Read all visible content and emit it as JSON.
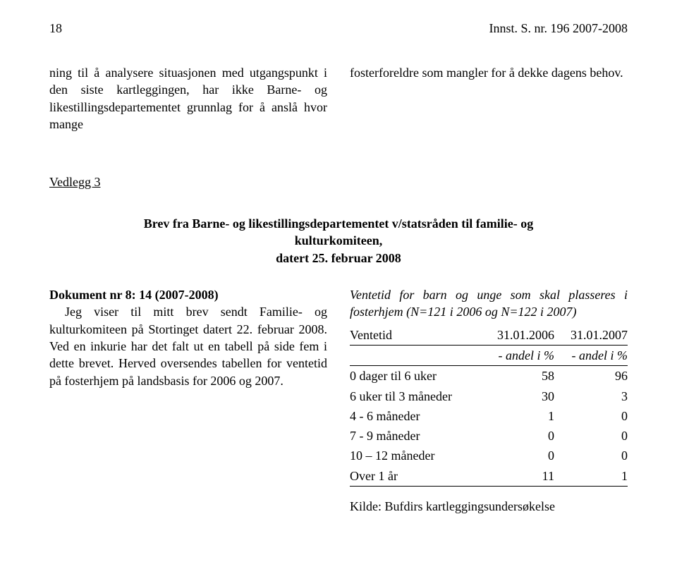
{
  "header": {
    "page_number": "18",
    "doc_ref": "Innst. S. nr. 196 2007-2008"
  },
  "top_left_text": "ning til å analysere situasjonen med utgangspunkt i den siste kartleggingen, har ikke Barne- og likestillingsdepartementet grunnlag for å anslå hvor mange",
  "top_right_text": "fosterforeldre som mangler for å dekke dagens behov.",
  "attachment_label": "Vedlegg 3",
  "letter_title_line1": "Brev fra Barne- og likestillingsdepartementet v/statsråden til familie- og kulturkomiteen,",
  "letter_title_line2": "datert 25. februar 2008",
  "doc_line": "Dokument nr 8: 14 (2007-2008)",
  "body_text": "Jeg viser til mitt brev sendt Familie- og kulturkomiteen på Stortinget datert 22. februar 2008. Ved en inkurie har det falt ut en tabell på side fem i dette brevet. Herved oversendes tabellen for ventetid på fosterhjem på landsbasis for 2006 og 2007.",
  "table_caption": "Ventetid for barn og unge som skal plasseres i fosterhjem (N=121 i 2006 og N=122 i 2007)",
  "table": {
    "col1_header": "Ventetid",
    "col2_header": "31.01.2006",
    "col2_sub": "- andel i %",
    "col3_header": "31.01.2007",
    "col3_sub": "- andel i %",
    "rows": [
      {
        "label": "0 dager til 6 uker",
        "v2006": "58",
        "v2007": "96"
      },
      {
        "label": "6 uker til 3 måneder",
        "v2006": "30",
        "v2007": "3"
      },
      {
        "label": "4 - 6 måneder",
        "v2006": "1",
        "v2007": "0"
      },
      {
        "label": "7 - 9 måneder",
        "v2006": "0",
        "v2007": "0"
      },
      {
        "label": "10 – 12 måneder",
        "v2006": "0",
        "v2007": "0"
      },
      {
        "label": "Over 1 år",
        "v2006": "11",
        "v2007": "1"
      }
    ]
  },
  "source_line": "Kilde: Bufdirs kartleggingsundersøkelse"
}
